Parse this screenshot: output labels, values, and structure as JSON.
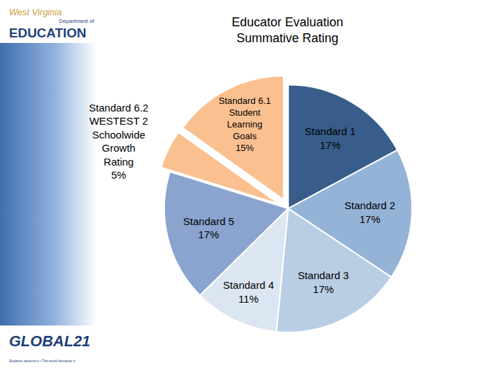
{
  "chart_data": {
    "type": "pie",
    "title": "Educator Evaluation Summative Rating",
    "categories": [
      "Standard 1",
      "Standard 2",
      "Standard 3",
      "Standard 4",
      "Standard 5",
      "Standard 6.2 WESTEST 2 Schoolwide Growth Rating",
      "Standard 6.1 Student Learning Goals"
    ],
    "values": [
      17,
      17,
      17,
      11,
      17,
      5,
      15
    ],
    "value_labels": [
      "17%",
      "17%",
      "17%",
      "11%",
      "17%",
      "5%",
      "15%"
    ],
    "colors": [
      "#385d8a",
      "#95b3d7",
      "#b9cde5",
      "#dce6f2",
      "#8aa4cf",
      "#fac090",
      "#fac090"
    ],
    "data_labels": true,
    "annotations": [
      "West Virginia",
      "Department of",
      "EDUCATION",
      "GLOBAL21",
      "Students deserve it • The world demands it"
    ]
  }
}
